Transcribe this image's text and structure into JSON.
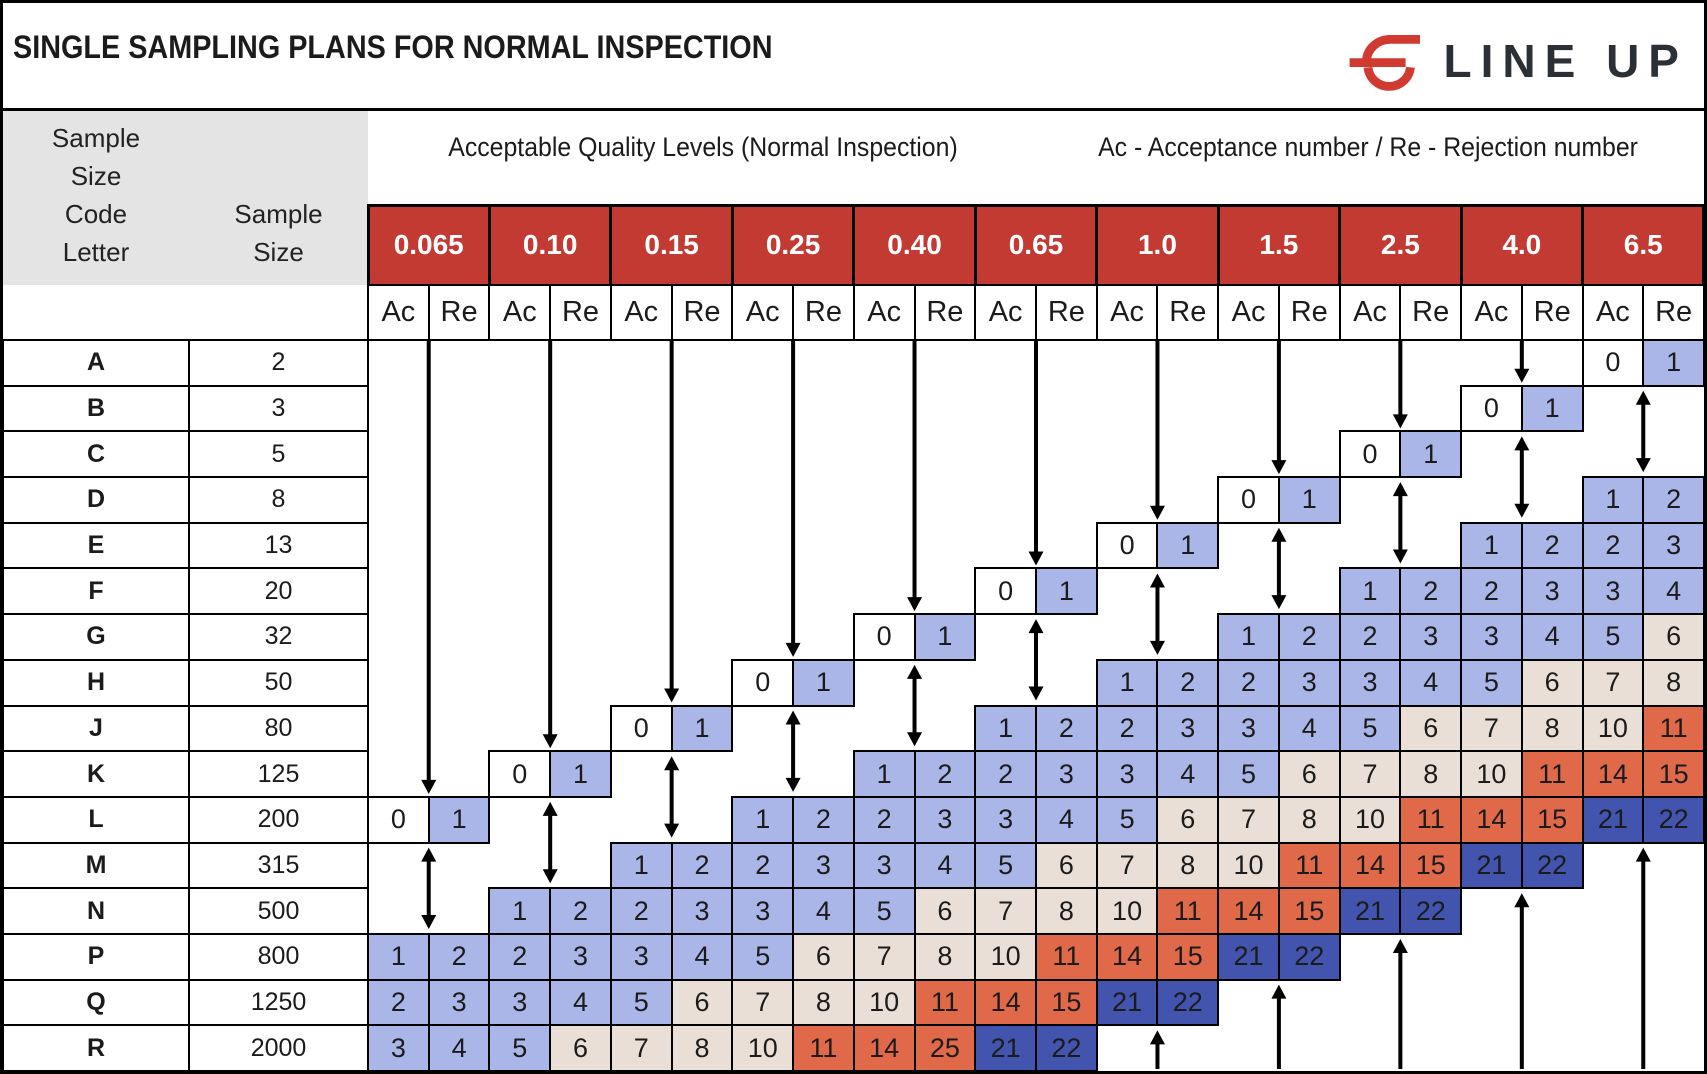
{
  "title": "SINGLE SAMPLING PLANS FOR NORMAL INSPECTION",
  "logo_text": "LINE UP",
  "captions": {
    "aql": "Acceptable Quality Levels (Normal Inspection)",
    "acre": "Ac - Acceptance number / Re - Rejection number"
  },
  "left_header": {
    "code_letter_lines": [
      "Sample",
      "Size",
      "Code",
      "Letter"
    ],
    "sample_size_lines": [
      "Sample",
      "Size"
    ]
  },
  "subheaders": {
    "ac": "Ac",
    "re": "Re"
  },
  "colors": {
    "white": "#ffffff",
    "blue": "#abb6e8",
    "beige": "#e9dfd6",
    "orange": "#e0694a",
    "navy": "#4254ae",
    "red": "#c33a33",
    "gray": "#e4e4e4",
    "line": "#000000",
    "logo_red": "#d03a30"
  },
  "value_colors": {
    "0": "white",
    "1": "blue",
    "2": "blue",
    "3": "blue",
    "4": "blue",
    "5": "blue",
    "6": "beige",
    "7": "beige",
    "8": "beige",
    "10": "beige",
    "11": "orange",
    "14": "orange",
    "15": "orange",
    "25": "orange",
    "21": "navy",
    "22": "navy"
  },
  "chart_data": {
    "type": "table",
    "title": "SINGLE SAMPLING PLANS FOR NORMAL INSPECTION",
    "aql_levels": [
      "0.065",
      "0.10",
      "0.15",
      "0.25",
      "0.40",
      "0.65",
      "1.0",
      "1.5",
      "2.5",
      "4.0",
      "6.5"
    ],
    "rows": [
      {
        "letter": "A",
        "size": "2"
      },
      {
        "letter": "B",
        "size": "3"
      },
      {
        "letter": "C",
        "size": "5"
      },
      {
        "letter": "D",
        "size": "8"
      },
      {
        "letter": "E",
        "size": "13"
      },
      {
        "letter": "F",
        "size": "20"
      },
      {
        "letter": "G",
        "size": "32"
      },
      {
        "letter": "H",
        "size": "50"
      },
      {
        "letter": "J",
        "size": "80"
      },
      {
        "letter": "K",
        "size": "125"
      },
      {
        "letter": "L",
        "size": "200"
      },
      {
        "letter": "M",
        "size": "315"
      },
      {
        "letter": "N",
        "size": "500"
      },
      {
        "letter": "P",
        "size": "800"
      },
      {
        "letter": "Q",
        "size": "1250"
      },
      {
        "letter": "R",
        "size": "2000"
      }
    ],
    "plans": [
      {
        "aql": "0.065",
        "cells": {
          "L": [
            0,
            1
          ],
          "P": [
            1,
            2
          ],
          "Q": [
            2,
            3
          ],
          "R": [
            3,
            4
          ]
        },
        "down_arrow": [
          "A",
          "K"
        ],
        "double_arrow": [
          "M",
          "N"
        ],
        "up_arrow": null
      },
      {
        "aql": "0.10",
        "cells": {
          "K": [
            0,
            1
          ],
          "N": [
            1,
            2
          ],
          "P": [
            2,
            3
          ],
          "Q": [
            3,
            4
          ],
          "R": [
            5,
            6
          ]
        },
        "down_arrow": [
          "A",
          "J"
        ],
        "double_arrow": [
          "L",
          "M"
        ],
        "up_arrow": null
      },
      {
        "aql": "0.15",
        "cells": {
          "J": [
            0,
            1
          ],
          "M": [
            1,
            2
          ],
          "N": [
            2,
            3
          ],
          "P": [
            3,
            4
          ],
          "Q": [
            5,
            6
          ],
          "R": [
            7,
            8
          ]
        },
        "down_arrow": [
          "A",
          "H"
        ],
        "double_arrow": [
          "K",
          "L"
        ],
        "up_arrow": null
      },
      {
        "aql": "0.25",
        "cells": {
          "H": [
            0,
            1
          ],
          "L": [
            1,
            2
          ],
          "M": [
            2,
            3
          ],
          "N": [
            3,
            4
          ],
          "P": [
            5,
            6
          ],
          "Q": [
            7,
            8
          ],
          "R": [
            10,
            11
          ]
        },
        "down_arrow": [
          "A",
          "G"
        ],
        "double_arrow": [
          "J",
          "K"
        ],
        "up_arrow": null
      },
      {
        "aql": "0.40",
        "cells": {
          "G": [
            0,
            1
          ],
          "K": [
            1,
            2
          ],
          "L": [
            2,
            3
          ],
          "M": [
            3,
            4
          ],
          "N": [
            5,
            6
          ],
          "P": [
            7,
            8
          ],
          "Q": [
            10,
            11
          ],
          "R": [
            14,
            25
          ]
        },
        "down_arrow": [
          "A",
          "F"
        ],
        "double_arrow": [
          "H",
          "J"
        ],
        "up_arrow": null
      },
      {
        "aql": "0.65",
        "cells": {
          "F": [
            0,
            1
          ],
          "J": [
            1,
            2
          ],
          "K": [
            2,
            3
          ],
          "L": [
            3,
            4
          ],
          "M": [
            5,
            6
          ],
          "N": [
            7,
            8
          ],
          "P": [
            10,
            11
          ],
          "Q": [
            14,
            15
          ],
          "R": [
            21,
            22
          ]
        },
        "down_arrow": [
          "A",
          "E"
        ],
        "double_arrow": [
          "G",
          "H"
        ],
        "up_arrow": null
      },
      {
        "aql": "1.0",
        "cells": {
          "E": [
            0,
            1
          ],
          "H": [
            1,
            2
          ],
          "J": [
            2,
            3
          ],
          "K": [
            3,
            4
          ],
          "L": [
            5,
            6
          ],
          "M": [
            7,
            8
          ],
          "N": [
            10,
            11
          ],
          "P": [
            14,
            15
          ],
          "Q": [
            21,
            22
          ]
        },
        "down_arrow": [
          "A",
          "D"
        ],
        "double_arrow": [
          "F",
          "G"
        ],
        "up_arrow": [
          "R",
          "R"
        ]
      },
      {
        "aql": "1.5",
        "cells": {
          "D": [
            0,
            1
          ],
          "G": [
            1,
            2
          ],
          "H": [
            2,
            3
          ],
          "J": [
            3,
            4
          ],
          "K": [
            5,
            6
          ],
          "L": [
            7,
            8
          ],
          "M": [
            10,
            11
          ],
          "N": [
            14,
            15
          ],
          "P": [
            21,
            22
          ]
        },
        "down_arrow": [
          "A",
          "C"
        ],
        "double_arrow": [
          "E",
          "F"
        ],
        "up_arrow": [
          "Q",
          "R"
        ]
      },
      {
        "aql": "2.5",
        "cells": {
          "C": [
            0,
            1
          ],
          "F": [
            1,
            2
          ],
          "G": [
            2,
            3
          ],
          "H": [
            3,
            4
          ],
          "J": [
            5,
            6
          ],
          "K": [
            7,
            8
          ],
          "L": [
            10,
            11
          ],
          "M": [
            14,
            15
          ],
          "N": [
            21,
            22
          ]
        },
        "down_arrow": [
          "A",
          "B"
        ],
        "double_arrow": [
          "D",
          "E"
        ],
        "up_arrow": [
          "P",
          "R"
        ]
      },
      {
        "aql": "4.0",
        "cells": {
          "B": [
            0,
            1
          ],
          "E": [
            1,
            2
          ],
          "F": [
            2,
            3
          ],
          "G": [
            3,
            4
          ],
          "H": [
            5,
            6
          ],
          "J": [
            7,
            8
          ],
          "K": [
            10,
            11
          ],
          "L": [
            14,
            15
          ],
          "M": [
            21,
            22
          ]
        },
        "down_arrow": [
          "A",
          "A"
        ],
        "double_arrow": [
          "C",
          "D"
        ],
        "up_arrow": [
          "N",
          "R"
        ]
      },
      {
        "aql": "6.5",
        "cells": {
          "A": [
            0,
            1
          ],
          "D": [
            1,
            2
          ],
          "E": [
            2,
            3
          ],
          "F": [
            3,
            4
          ],
          "G": [
            5,
            6
          ],
          "H": [
            7,
            8
          ],
          "J": [
            10,
            11
          ],
          "K": [
            14,
            15
          ],
          "L": [
            21,
            22
          ]
        },
        "down_arrow": null,
        "double_arrow": [
          "B",
          "C"
        ],
        "up_arrow": [
          "M",
          "R"
        ]
      }
    ]
  }
}
